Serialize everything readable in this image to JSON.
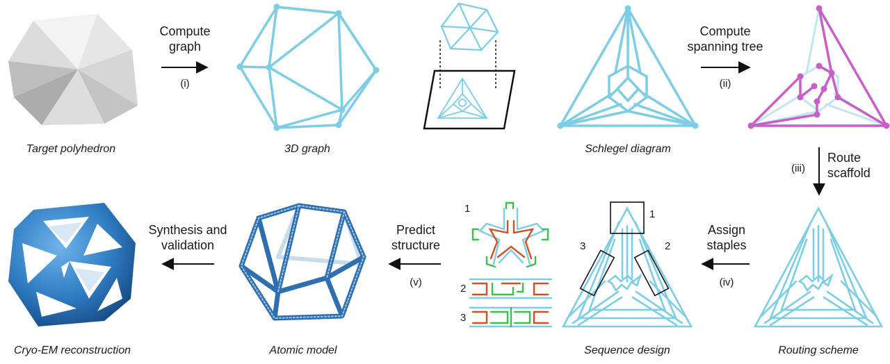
{
  "captions": {
    "target": "Target polyhedron",
    "graph3d": "3D graph",
    "schlegel": "Schlegel diagram",
    "routing": "Routing scheme",
    "sequence": "Sequence design",
    "atomic": "Atomic model",
    "cryo": "Cryo-EM reconstruction"
  },
  "steps": {
    "compute_graph": {
      "line1": "Compute",
      "line2": "graph",
      "num": "(i)"
    },
    "spanning_tree": {
      "line1": "Compute",
      "line2": "spanning tree",
      "num": "(ii)"
    },
    "route_scaffold": {
      "line1": "Route",
      "line2": "scaffold",
      "num": "(iii)"
    },
    "assign_staples": {
      "line1": "Assign",
      "line2": "staples",
      "num": "(iv)"
    },
    "predict_structure": {
      "line1": "Predict",
      "line2": "structure",
      "num": "(v)"
    },
    "synthesis": {
      "line1": "Synthesis and",
      "line2": "validation"
    }
  },
  "box_labels": {
    "one": "1",
    "two": "2",
    "three": "3"
  },
  "colors": {
    "graph": "#7ccde6",
    "tree": "#c85fc8",
    "scaffold": "#d2501e",
    "staple": "#3cc04a",
    "cryo": "#2f7cc3",
    "polyhedron": "#d9d9d9"
  }
}
